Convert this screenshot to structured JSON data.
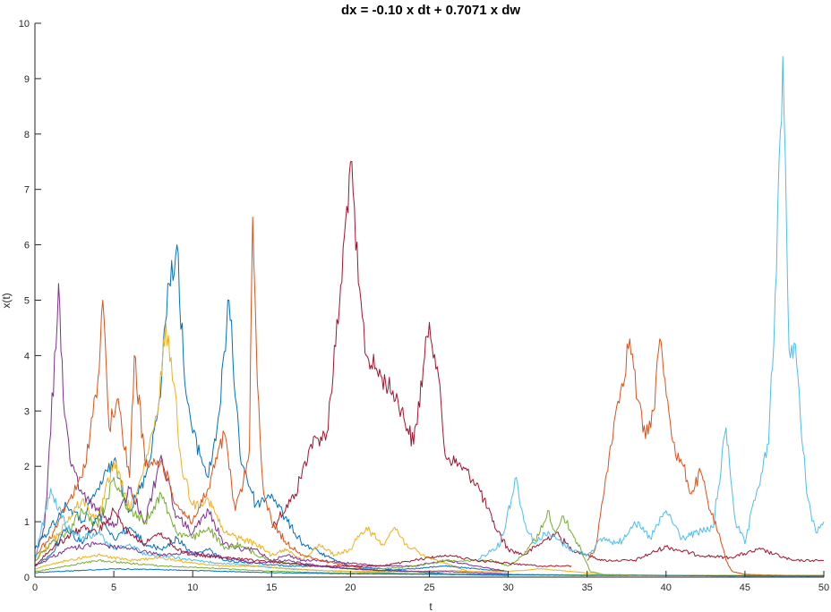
{
  "chart_data": {
    "type": "line",
    "title": "dx = -0.10 x dt + 0.7071 x dw",
    "xlabel": "t",
    "ylabel": "x(t)",
    "xlim": [
      0,
      50
    ],
    "ylim": [
      0,
      10
    ],
    "xticks": [
      "0",
      "5",
      "10",
      "15",
      "20",
      "25",
      "30",
      "35",
      "40",
      "45",
      "50"
    ],
    "yticks": [
      "0",
      "1",
      "2",
      "3",
      "4",
      "5",
      "6",
      "7",
      "8",
      "9",
      "10"
    ],
    "grid": false,
    "legend": "none",
    "colors": [
      "#0072BD",
      "#D95319",
      "#EDB120",
      "#7E2F8E",
      "#77AC30",
      "#4DBEEE",
      "#A2142F"
    ],
    "series": [
      {
        "color": "#A2142F",
        "x": [
          15,
          16.5,
          17.5,
          18.5,
          19.3,
          20,
          20.5,
          21,
          22,
          23,
          24,
          25,
          25.5,
          26,
          27,
          28,
          29,
          30,
          31,
          32,
          33,
          34,
          35,
          36,
          38,
          40,
          42,
          44,
          46,
          48,
          50
        ],
        "y": [
          0.9,
          1.5,
          2.4,
          2.6,
          4.9,
          7.5,
          5.3,
          4.0,
          3.6,
          3.2,
          2.4,
          4.6,
          3.8,
          2.2,
          2.0,
          1.7,
          1.0,
          0.5,
          0.4,
          0.6,
          0.8,
          0.5,
          0.4,
          0.3,
          0.3,
          0.55,
          0.4,
          0.35,
          0.5,
          0.3,
          0.3
        ]
      },
      {
        "color": "#D95319",
        "x": [
          35,
          35.5,
          36,
          36.7,
          37.2,
          37.7,
          38.2,
          38.7,
          39.2,
          39.6,
          40.1,
          40.6,
          41.1,
          41.6,
          42.2,
          42.8,
          43.3,
          43.8,
          44.2,
          45,
          46,
          48,
          50
        ],
        "y": [
          0.3,
          0.5,
          1.4,
          2.8,
          3.5,
          4.3,
          3.2,
          2.5,
          3.0,
          4.3,
          3.2,
          2.2,
          2.0,
          1.5,
          1.9,
          1.2,
          0.8,
          0.3,
          0.1,
          0.05,
          0.04,
          0.03,
          0.03
        ]
      },
      {
        "color": "#4DBEEE",
        "x": [
          28,
          29.5,
          30.5,
          31,
          31.7,
          32.3,
          33,
          34,
          35,
          36,
          37,
          38,
          39,
          40,
          41,
          42,
          43,
          43.8,
          44.4,
          45,
          45.8,
          46.5,
          47,
          47.4,
          47.8,
          48.2,
          48.6,
          49,
          49.5,
          50
        ],
        "y": [
          0.3,
          0.6,
          1.8,
          1.0,
          0.6,
          0.8,
          0.7,
          0.5,
          0.4,
          0.7,
          0.6,
          1.0,
          0.7,
          1.2,
          0.7,
          0.8,
          0.9,
          2.7,
          1.0,
          0.6,
          1.6,
          2.4,
          5.5,
          9.4,
          4.1,
          4.2,
          2.5,
          1.4,
          0.8,
          1.0
        ]
      },
      {
        "color": "#0072BD",
        "x": [
          0,
          1,
          2,
          3,
          4,
          5,
          6,
          7,
          7.8,
          8.5,
          9,
          9.5,
          10,
          11,
          11.7,
          12.3,
          13,
          14,
          15,
          16,
          17,
          18,
          19,
          20,
          22,
          24,
          26,
          28,
          30
        ],
        "y": [
          0.5,
          0.9,
          1.3,
          1.0,
          1.6,
          2.1,
          1.2,
          1.8,
          3.0,
          5.3,
          6.0,
          3.5,
          2.6,
          1.8,
          3.0,
          5.0,
          2.2,
          1.3,
          1.5,
          1.0,
          0.6,
          0.45,
          0.3,
          0.2,
          0.15,
          0.1,
          0.06,
          0.04,
          0.03
        ]
      },
      {
        "color": "#EDB120",
        "x": [
          0,
          1,
          2,
          3,
          4,
          5,
          6,
          7,
          7.8,
          8.3,
          8.8,
          9.3,
          10,
          11,
          12,
          13,
          14,
          15,
          16,
          17,
          18,
          19,
          20,
          21,
          22,
          22.8,
          23.5,
          24.5,
          25.5,
          26.5,
          27.5
        ],
        "y": [
          0.3,
          0.6,
          1.0,
          1.4,
          1.0,
          2.1,
          1.2,
          2.0,
          3.0,
          4.6,
          3.5,
          2.0,
          1.3,
          1.4,
          0.8,
          0.7,
          0.6,
          0.4,
          0.5,
          0.3,
          0.6,
          0.4,
          0.5,
          0.9,
          0.6,
          0.9,
          0.6,
          0.4,
          0.3,
          0.2,
          0.1
        ]
      },
      {
        "color": "#7E2F8E",
        "x": [
          0,
          0.6,
          1.0,
          1.5,
          1.8,
          2.3,
          3,
          4,
          5,
          6,
          7,
          8,
          9,
          10,
          11,
          12,
          13,
          14,
          15,
          16,
          17,
          18,
          20,
          22,
          24,
          26,
          28,
          30
        ],
        "y": [
          0.3,
          0.9,
          2.6,
          5.3,
          3.2,
          2.0,
          1.5,
          1.2,
          0.9,
          1.6,
          1.0,
          2.2,
          1.1,
          0.8,
          1.2,
          0.6,
          0.5,
          0.5,
          0.3,
          0.4,
          0.3,
          0.3,
          0.25,
          0.2,
          0.2,
          0.3,
          0.2,
          0.1
        ]
      },
      {
        "color": "#D95319",
        "x": [
          0,
          1,
          2,
          3,
          3.5,
          4,
          4.3,
          4.7,
          5.2,
          6,
          6.3,
          7,
          8,
          9,
          10,
          11,
          12,
          12.7,
          13.2,
          13.6,
          13.8,
          14.1,
          14.5,
          15,
          16,
          17,
          18,
          20,
          22
        ],
        "y": [
          0.4,
          0.7,
          1.3,
          1.8,
          2.6,
          3.6,
          5.0,
          2.7,
          3.2,
          1.8,
          4.0,
          2.0,
          2.1,
          1.3,
          1.0,
          1.6,
          2.6,
          1.2,
          1.7,
          2.3,
          6.5,
          3.5,
          1.5,
          1.0,
          0.6,
          0.4,
          0.3,
          0.2,
          0.1
        ]
      },
      {
        "color": "#77AC30",
        "x": [
          0,
          1,
          2,
          3,
          4,
          5,
          6,
          7,
          8,
          9,
          10,
          11,
          12,
          13,
          14,
          15,
          16,
          18,
          20,
          22,
          24,
          26,
          28,
          29,
          30,
          31,
          32,
          32.5,
          33,
          33.5,
          34,
          34.6,
          35.2,
          36
        ],
        "y": [
          0.3,
          0.6,
          0.8,
          1.2,
          0.9,
          1.8,
          1.2,
          1.0,
          1.5,
          0.8,
          0.7,
          0.9,
          0.5,
          0.6,
          0.4,
          0.3,
          0.25,
          0.2,
          0.15,
          0.15,
          0.2,
          0.3,
          0.3,
          0.3,
          0.2,
          0.4,
          0.8,
          1.2,
          0.8,
          1.1,
          0.8,
          0.5,
          0.1,
          0.05
        ]
      },
      {
        "color": "#0072BD",
        "x": [
          0,
          1,
          2,
          3,
          4,
          5,
          6,
          7,
          8,
          9,
          10,
          11,
          12,
          14,
          16,
          18,
          20,
          22,
          24,
          26,
          28,
          30
        ],
        "y": [
          0.2,
          0.4,
          0.9,
          0.6,
          1.1,
          0.7,
          0.9,
          0.6,
          0.5,
          0.7,
          0.4,
          0.5,
          0.3,
          0.25,
          0.2,
          0.2,
          0.15,
          0.12,
          0.15,
          0.2,
          0.15,
          0.1
        ]
      },
      {
        "color": "#A2142F",
        "x": [
          0,
          1,
          2,
          3,
          4,
          5,
          6,
          7,
          8,
          9,
          10,
          12,
          14,
          16,
          18,
          20,
          22,
          24,
          26,
          28,
          30,
          32,
          34
        ],
        "y": [
          0.2,
          0.5,
          0.7,
          0.9,
          0.8,
          1.2,
          0.8,
          0.6,
          0.8,
          0.5,
          0.4,
          0.35,
          0.3,
          0.25,
          0.2,
          0.2,
          0.2,
          0.3,
          0.4,
          0.3,
          0.25,
          0.2,
          0.2
        ]
      },
      {
        "color": "#4DBEEE",
        "x": [
          0,
          1,
          2,
          3,
          4,
          5,
          6,
          7,
          8,
          10,
          12,
          14,
          16,
          18,
          20,
          22,
          24,
          26
        ],
        "y": [
          0.3,
          1.6,
          0.9,
          0.7,
          0.8,
          0.5,
          0.6,
          0.4,
          0.4,
          0.3,
          0.25,
          0.2,
          0.15,
          0.12,
          0.1,
          0.08,
          0.06,
          0.05
        ]
      },
      {
        "color": "#EDB120",
        "x": [
          0,
          2,
          4,
          6,
          8,
          10,
          12,
          14,
          16,
          18,
          20,
          22,
          24,
          26,
          28,
          30,
          32,
          34,
          36,
          38,
          40,
          45,
          50
        ],
        "y": [
          0.15,
          0.3,
          0.4,
          0.3,
          0.35,
          0.25,
          0.2,
          0.2,
          0.15,
          0.12,
          0.1,
          0.1,
          0.1,
          0.12,
          0.1,
          0.1,
          0.15,
          0.1,
          0.05,
          0.04,
          0.03,
          0.03,
          0.02
        ]
      },
      {
        "color": "#7E2F8E",
        "x": [
          0,
          2,
          4,
          6,
          8,
          10,
          12,
          14,
          16,
          18,
          20,
          22,
          24,
          26,
          28,
          30
        ],
        "y": [
          0.2,
          0.5,
          0.6,
          0.5,
          0.4,
          0.45,
          0.35,
          0.25,
          0.3,
          0.2,
          0.15,
          0.12,
          0.1,
          0.1,
          0.08,
          0.06
        ]
      },
      {
        "color": "#77AC30",
        "x": [
          0,
          2,
          4,
          6,
          8,
          10,
          12,
          14,
          16,
          18,
          20,
          25,
          30,
          35,
          40,
          45,
          50
        ],
        "y": [
          0.1,
          0.2,
          0.3,
          0.25,
          0.2,
          0.18,
          0.15,
          0.12,
          0.1,
          0.08,
          0.07,
          0.06,
          0.05,
          0.04,
          0.03,
          0.03,
          0.03
        ]
      },
      {
        "color": "#0072BD",
        "x": [
          0,
          5,
          10,
          15,
          20,
          25,
          30,
          35,
          40,
          45,
          50
        ],
        "y": [
          0.08,
          0.15,
          0.12,
          0.08,
          0.06,
          0.05,
          0.04,
          0.03,
          0.03,
          0.02,
          0.02
        ]
      }
    ]
  }
}
